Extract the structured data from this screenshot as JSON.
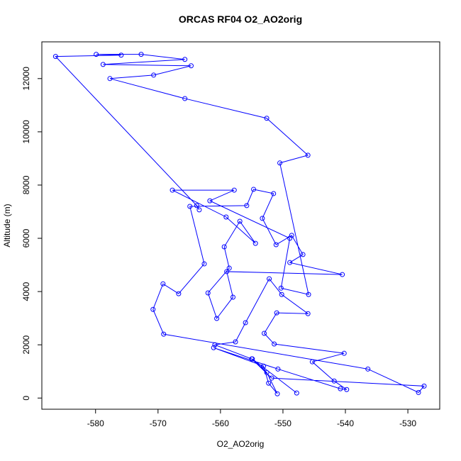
{
  "chart_data": {
    "type": "line",
    "title": "ORCAS RF04 O2_AO2orig",
    "x_label": "O2_AO2orig",
    "y_label": "Altitude (m)",
    "color": "#0000ff",
    "markers": true,
    "x": [
      -547.8,
      -554.9,
      -552.6,
      -550.9,
      -552.3,
      -553.1,
      -561.1,
      -550.8,
      -540.8,
      -539.8,
      -541.8,
      -545.3,
      -540.2,
      -551.4,
      -553.0,
      -551.0,
      -546.0,
      -550.2,
      -552.2,
      -556.0,
      -557.6,
      -560.9,
      -555.0,
      -551.8,
      -527.4,
      -528.3,
      -536.4,
      -569.1,
      -570.8,
      -569.2,
      -566.7,
      -562.6,
      -564.9,
      -555.8,
      -554.7,
      -551.5,
      -553.3,
      -551.1,
      -548.6,
      -546.8,
      -548.9,
      -540.5,
      -559.0,
      -558.0,
      -560.6,
      -562.0,
      -558.6,
      -559.4,
      -556.9,
      -554.4,
      -559.1,
      -567.7,
      -557.8,
      -561.7,
      -548.9,
      -550.3,
      -545.9,
      -550.5,
      -546.0,
      -552.6,
      -565.7,
      -577.7,
      -570.7,
      -564.7,
      -578.8,
      -565.7,
      -572.7,
      -579.9,
      -575.9,
      -586.4,
      -563.8,
      -563.4
    ],
    "values": [
      190,
      1470,
      960,
      160,
      560,
      1200,
      1890,
      1090,
      350,
      320,
      640,
      1360,
      1680,
      2030,
      2430,
      3200,
      3170,
      3890,
      4480,
      2830,
      2110,
      2000,
      1470,
      750,
      450,
      210,
      1090,
      2400,
      3330,
      4290,
      3920,
      5040,
      7200,
      7230,
      7840,
      7680,
      6750,
      5760,
      6110,
      5390,
      5090,
      4640,
      4750,
      3790,
      2990,
      3950,
      4880,
      5680,
      6640,
      5810,
      6800,
      7810,
      7810,
      7410,
      6000,
      4130,
      3890,
      8830,
      9120,
      10510,
      11250,
      12000,
      12130,
      12480,
      12530,
      12720,
      12910,
      12910,
      12880,
      12830,
      7230,
      7070
    ],
    "xlim": [
      -588.6,
      -524.9
    ],
    "ylim": [
      -420,
      13380
    ],
    "xticks": [
      -580,
      -570,
      -560,
      -550,
      -540,
      -530
    ],
    "yticks": [
      0,
      2000,
      4000,
      6000,
      8000,
      10000,
      12000
    ]
  }
}
